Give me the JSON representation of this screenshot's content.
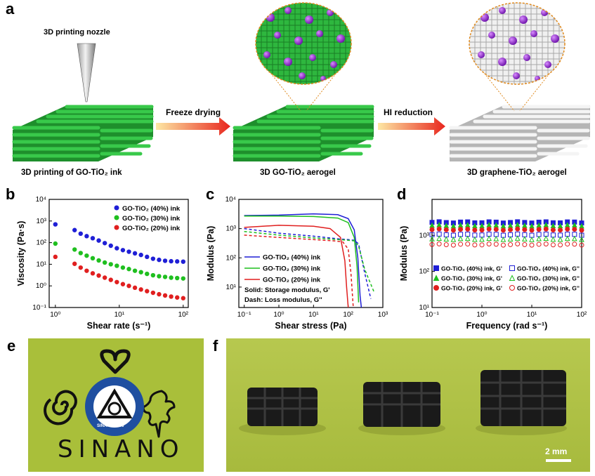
{
  "panel_a": {
    "label": "a",
    "nozzle_label": "3D printing nozzle",
    "arrow1_label": "Freeze drying",
    "arrow2_label": "HI reduction",
    "captions": {
      "left": "3D printing of GO-TiO₂ ink",
      "middle": "3D GO-TiO₂ aerogel",
      "right": "3D graphene-TiO₂ aerogel"
    },
    "colors": {
      "go_green": "#27a737",
      "graphene_gray": "#e2e2e2",
      "tio2_purple": "#8b1ec4",
      "arrow_start": "#fde8a4",
      "arrow_end": "#e8261e"
    }
  },
  "panel_e": {
    "label": "e",
    "text": "SINANO",
    "logo_text": "SINANO 2006"
  },
  "panel_f": {
    "label": "f",
    "scale_bar": "2 mm"
  },
  "chart_data": [
    {
      "panel": "b",
      "type": "scatter",
      "xlabel": "Shear rate (s⁻¹)",
      "ylabel": "Viscosity (Pa·s)",
      "xscale": "log",
      "yscale": "log",
      "xlim": [
        0.8,
        120
      ],
      "ylim": [
        0.1,
        10000
      ],
      "xticks": [
        "10⁰",
        "10¹",
        "10²"
      ],
      "yticks": [
        "10⁻¹",
        "10⁰",
        "10¹",
        "10²",
        "10³",
        "10⁴"
      ],
      "legend_position": "top-right",
      "series": [
        {
          "name": "GO-TiO₂ (40%) ink",
          "color": "#1f1fd6",
          "x_range": [
            1,
            100
          ],
          "values": [
            700,
            380,
            260,
            200,
            160,
            125,
            95,
            72,
            55,
            45,
            38,
            32,
            27,
            22,
            18,
            16,
            14.5,
            13.8,
            13.5,
            13.2
          ],
          "marker": "circle"
        },
        {
          "name": "GO-TiO₂ (30%) ink",
          "color": "#1fbf1f",
          "x_range": [
            1,
            100
          ],
          "values": [
            90,
            48,
            33,
            25,
            19,
            15,
            12,
            10,
            8.5,
            7,
            6,
            5,
            4.3,
            3.6,
            3.1,
            2.8,
            2.6,
            2.4,
            2.3,
            2.2
          ],
          "marker": "circle"
        },
        {
          "name": "GO-TiO₂ (20%) ink",
          "color": "#e01f1f",
          "x_range": [
            1,
            100
          ],
          "values": [
            22,
            10.5,
            7,
            5,
            3.8,
            3,
            2.4,
            1.9,
            1.5,
            1.2,
            1.0,
            0.82,
            0.68,
            0.57,
            0.48,
            0.41,
            0.36,
            0.32,
            0.29,
            0.27
          ],
          "marker": "circle"
        }
      ]
    },
    {
      "panel": "c",
      "type": "line",
      "xlabel": "Shear stress (Pa)",
      "ylabel": "Modulus (Pa)",
      "xscale": "log",
      "yscale": "log",
      "xlim": [
        0.07,
        1000
      ],
      "ylim": [
        2,
        10000
      ],
      "xticks": [
        "10⁻¹",
        "10⁰",
        "10¹",
        "10²",
        "10³"
      ],
      "yticks": [
        "10¹",
        "10²",
        "10³",
        "10⁴"
      ],
      "annotations": [
        "Solid: Storage modulus, G'",
        "Dash: Loss modulus, G''"
      ],
      "series": [
        {
          "name": "GO-TiO₂ (40%) ink",
          "color": "#1f1fd6",
          "G_prime": [
            [
              0.1,
              2800
            ],
            [
              1,
              2900
            ],
            [
              10,
              3200
            ],
            [
              50,
              3000
            ],
            [
              100,
              2200
            ],
            [
              150,
              900
            ],
            [
              190,
              100
            ],
            [
              220,
              5
            ],
            [
              240,
              2
            ]
          ],
          "G_double_prime": [
            [
              0.1,
              1000
            ],
            [
              1,
              700
            ],
            [
              10,
              550
            ],
            [
              50,
              450
            ],
            [
              100,
              420
            ],
            [
              150,
              400
            ],
            [
              200,
              300
            ],
            [
              300,
              30
            ],
            [
              450,
              4
            ]
          ]
        },
        {
          "name": "GO-TiO₂ (30%) ink",
          "color": "#1fbf1f",
          "G_prime": [
            [
              0.1,
              2700
            ],
            [
              1,
              2700
            ],
            [
              10,
              2600
            ],
            [
              50,
              2300
            ],
            [
              100,
              1600
            ],
            [
              150,
              500
            ],
            [
              180,
              50
            ],
            [
              200,
              3
            ]
          ],
          "G_double_prime": [
            [
              0.1,
              800
            ],
            [
              1,
              600
            ],
            [
              10,
              480
            ],
            [
              50,
              420
            ],
            [
              100,
              400
            ],
            [
              150,
              380
            ],
            [
              200,
              250
            ],
            [
              300,
              40
            ],
            [
              550,
              7
            ]
          ]
        },
        {
          "name": "GO-TiO₂ (20%) ink",
          "color": "#e01f1f",
          "G_prime": [
            [
              0.1,
              1100
            ],
            [
              1,
              1300
            ],
            [
              10,
              1200
            ],
            [
              30,
              1000
            ],
            [
              60,
              500
            ],
            [
              80,
              80
            ],
            [
              90,
              10
            ],
            [
              100,
              2
            ]
          ],
          "G_double_prime": [
            [
              0.1,
              600
            ],
            [
              1,
              500
            ],
            [
              10,
              420
            ],
            [
              40,
              380
            ],
            [
              70,
              350
            ],
            [
              100,
              200
            ],
            [
              120,
              30
            ],
            [
              140,
              2
            ]
          ]
        }
      ]
    },
    {
      "panel": "d",
      "type": "scatter",
      "xlabel": "Frequency (rad s⁻¹)",
      "ylabel": "Modulus (Pa)",
      "xscale": "log",
      "yscale": "log",
      "xlim": [
        0.1,
        100
      ],
      "ylim": [
        10,
        10000
      ],
      "xticks": [
        "10⁻¹",
        "10⁰",
        "10¹",
        "10²"
      ],
      "yticks": [
        "10¹",
        "10²",
        "10³"
      ],
      "legend_position": "bottom",
      "series": [
        {
          "name": "GO-TiO₂ (40%) ink, G'",
          "color": "#1f1fd6",
          "marker": "square-filled",
          "value": 2300
        },
        {
          "name": "GO-TiO₂ (40%) ink, G''",
          "color": "#1f1fd6",
          "marker": "square-open",
          "value": 1050
        },
        {
          "name": "GO-TiO₂ (30%) ink, G'",
          "color": "#1fbf1f",
          "marker": "triangle-filled",
          "value": 1900
        },
        {
          "name": "GO-TiO₂ (30%) ink, G''",
          "color": "#1fbf1f",
          "marker": "triangle-open",
          "value": 800
        },
        {
          "name": "GO-TiO₂ (20%) ink, G'",
          "color": "#e01f1f",
          "marker": "circle-filled",
          "value": 1450
        },
        {
          "name": "GO-TiO₂ (20%) ink, G''",
          "color": "#e01f1f",
          "marker": "circle-open",
          "value": 560
        }
      ]
    }
  ]
}
